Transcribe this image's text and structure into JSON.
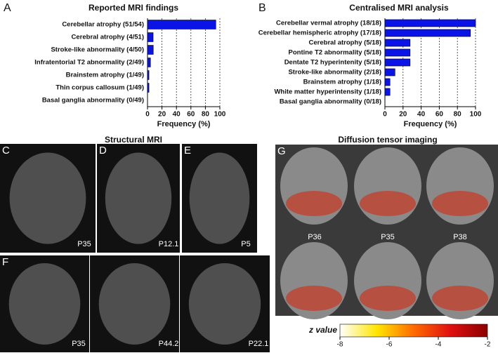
{
  "chart_data": [
    {
      "type": "bar",
      "orientation": "horizontal",
      "panel_label": "A",
      "title": "Reported MRI findings",
      "xlabel": "Frequency (%)",
      "categories": [
        "Cerebellar atrophy (51/54)",
        "Cerebral atrophy (4/51)",
        "Stroke-like abnormality (4/50)",
        "Infratentorial T2 abnormality (2/49)",
        "Brainstem atrophy (1/49)",
        "Thin corpus callosum (1/49)",
        "Basal ganglia abnormality (0/49)"
      ],
      "values": [
        94.4,
        7.8,
        8,
        4.1,
        2,
        2,
        0
      ],
      "color": "#0a14e6",
      "xlim": [
        0,
        100
      ],
      "xticks": [
        0,
        20,
        40,
        60,
        80,
        100
      ],
      "grid": true
    },
    {
      "type": "bar",
      "orientation": "horizontal",
      "panel_label": "B",
      "title": "Centralised MRI analysis",
      "xlabel": "Frequency (%)",
      "categories": [
        "Cerebellar vermal atrophy (18/18)",
        "Cerebellar hemispheric atrophy (17/18)",
        "Cerebral atrophy (5/18)",
        "Pontine T2 abnormality (5/18)",
        "Dentate T2 hyperintenity (5/18)",
        "Stroke-like abnormality (2/18)",
        "Brainstem atrophy (1/18)",
        "White matter hyperintensity (1/18)",
        "Basal ganglia abnormality (0/18)"
      ],
      "values": [
        100,
        94.4,
        27.8,
        27.8,
        27.8,
        11.1,
        5.6,
        5.6,
        0
      ],
      "color": "#0a14e6",
      "xlim": [
        0,
        100
      ],
      "xticks": [
        0,
        20,
        40,
        60,
        80,
        100
      ],
      "grid": true
    }
  ],
  "figure": {
    "structural_title": "Structural MRI",
    "dti_title": "Diffusion tensor imaging",
    "panels": [
      {
        "label": "C",
        "captions": [
          "P35"
        ]
      },
      {
        "label": "D",
        "captions": [
          "P12.1"
        ]
      },
      {
        "label": "E",
        "captions": [
          "P5"
        ]
      },
      {
        "label": "F",
        "captions": [
          "P35",
          "P44.2",
          "P22.1"
        ]
      },
      {
        "label": "G",
        "captions": [
          "P36",
          "P35",
          "P38"
        ]
      }
    ],
    "colorbar": {
      "label": "z value",
      "xlim": [
        -8,
        -2
      ],
      "xticks": [
        -8,
        -6,
        -4,
        -2
      ],
      "colors": [
        "#ffffff",
        "#ffe600",
        "#ff6a00",
        "#e01010",
        "#8b0000"
      ]
    }
  }
}
